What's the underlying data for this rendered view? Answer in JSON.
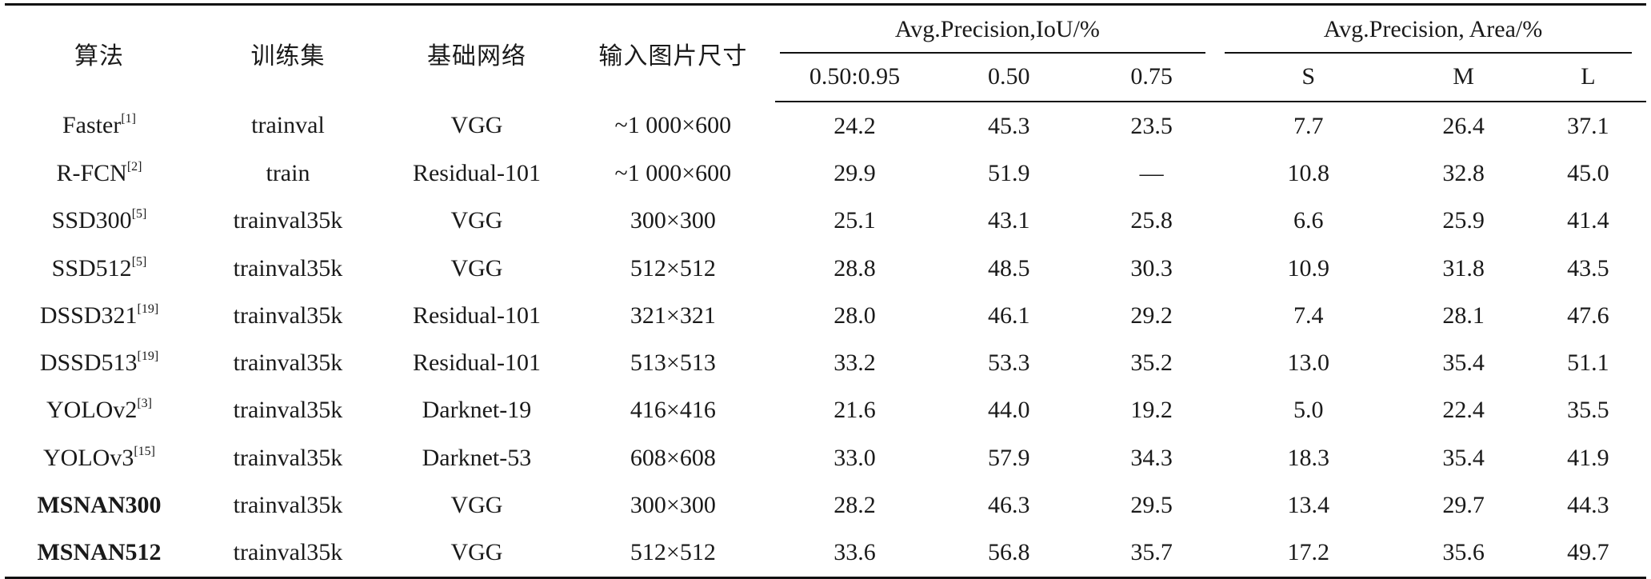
{
  "table": {
    "headers": {
      "algorithm": "算法",
      "training_set": "训练集",
      "backbone": "基础网络",
      "input_size": "输入图片尺寸",
      "group_iou": "Avg.Precision,IoU/%",
      "group_area": "Avg.Precision, Area/%",
      "iou_cols": [
        "0.50:0.95",
        "0.50",
        "0.75"
      ],
      "area_cols": [
        "S",
        "M",
        "L"
      ]
    },
    "rows": [
      {
        "name": "Faster",
        "ref": "[1]",
        "train": "trainval",
        "net": "VGG",
        "size": "~1 000×600",
        "v": [
          "24.2",
          "45.3",
          "23.5",
          "7.7",
          "26.4",
          "37.1"
        ],
        "bold_name": false,
        "bold_cells": []
      },
      {
        "name": "R-FCN",
        "ref": "[2]",
        "train": "train",
        "net": "Residual-101",
        "size": "~1 000×600",
        "v": [
          "29.9",
          "51.9",
          "—",
          "10.8",
          "32.8",
          "45.0"
        ],
        "bold_name": false,
        "bold_cells": []
      },
      {
        "name": "SSD300",
        "ref": "[5]",
        "train": "trainval35k",
        "net": "VGG",
        "size": "300×300",
        "v": [
          "25.1",
          "43.1",
          "25.8",
          "6.6",
          "25.9",
          "41.4"
        ],
        "bold_name": false,
        "bold_cells": []
      },
      {
        "name": "SSD512",
        "ref": "[5]",
        "train": "trainval35k",
        "net": "VGG",
        "size": "512×512",
        "v": [
          "28.8",
          "48.5",
          "30.3",
          "10.9",
          "31.8",
          "43.5"
        ],
        "bold_name": false,
        "bold_cells": []
      },
      {
        "name": "DSSD321",
        "ref": "[19]",
        "train": "trainval35k",
        "net": "Residual-101",
        "size": "321×321",
        "v": [
          "28.0",
          "46.1",
          "29.2",
          "7.4",
          "28.1",
          "47.6"
        ],
        "bold_name": false,
        "bold_cells": []
      },
      {
        "name": "DSSD513",
        "ref": "[19]",
        "train": "trainval35k",
        "net": "Residual-101",
        "size": "513×513",
        "v": [
          "33.2",
          "53.3",
          "35.2",
          "13.0",
          "35.4",
          "51.1"
        ],
        "bold_name": false,
        "bold_cells": []
      },
      {
        "name": "YOLOv2",
        "ref": "[3]",
        "train": "trainval35k",
        "net": "Darknet-19",
        "size": "416×416",
        "v": [
          "21.6",
          "44.0",
          "19.2",
          "5.0",
          "22.4",
          "35.5"
        ],
        "bold_name": false,
        "bold_cells": []
      },
      {
        "name": "YOLOv3",
        "ref": "[15]",
        "train": "trainval35k",
        "net": "Darknet-53",
        "size": "608×608",
        "v": [
          "33.0",
          "57.9",
          "34.3",
          "18.3",
          "35.4",
          "41.9"
        ],
        "bold_name": false,
        "bold_cells": []
      },
      {
        "name": "MSNAN300",
        "ref": "",
        "train": "trainval35k",
        "net": "VGG",
        "size": "300×300",
        "v": [
          "28.2",
          "46.3",
          "29.5",
          "13.4",
          "29.7",
          "44.3"
        ],
        "bold_name": true,
        "bold_cells": []
      },
      {
        "name": "MSNAN512",
        "ref": "",
        "train": "trainval35k",
        "net": "VGG",
        "size": "512×512",
        "v": [
          "33.6",
          "56.8",
          "35.7",
          "17.2",
          "35.6",
          "49.7"
        ],
        "bold_name": true,
        "bold_cells": [
          0,
          2,
          4
        ]
      }
    ]
  }
}
